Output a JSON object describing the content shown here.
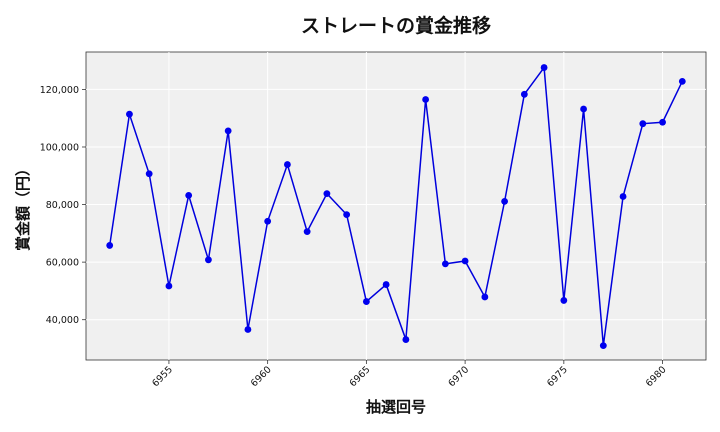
{
  "chart_data": {
    "type": "line",
    "title": "ストレートの賞金推移",
    "xlabel": "抽選回号",
    "ylabel": "賞金額（円）",
    "x": [
      6952,
      6953,
      6954,
      6955,
      6956,
      6957,
      6958,
      6959,
      6960,
      6961,
      6962,
      6963,
      6964,
      6965,
      6966,
      6967,
      6968,
      6969,
      6970,
      6971,
      6972,
      6973,
      6974,
      6975,
      6976,
      6977,
      6978,
      6979,
      6980,
      6981
    ],
    "series": [
      {
        "values": [
          65800,
          111400,
          90700,
          51700,
          83200,
          60800,
          105600,
          36600,
          74200,
          93900,
          70600,
          83800,
          76500,
          46300,
          52200,
          33100,
          116500,
          59400,
          60400,
          47900,
          81100,
          118300,
          127600,
          46700,
          113200,
          31000,
          82800,
          108100,
          108600,
          122800
        ]
      }
    ],
    "xlim": [
      6950.8,
      6982.2
    ],
    "ylim": [
      26000,
      133000
    ],
    "x_ticks": [
      "6955",
      "6960",
      "6965",
      "6970",
      "6975",
      "6980"
    ],
    "y_ticks": [
      "40,000",
      "60,000",
      "80,000",
      "100,000",
      "120,000"
    ],
    "grid": true,
    "colors": {
      "line": "#0000dd",
      "marker": "#0000ee",
      "plot_bg": "#f0f0f0",
      "grid": "#ffffff"
    }
  }
}
